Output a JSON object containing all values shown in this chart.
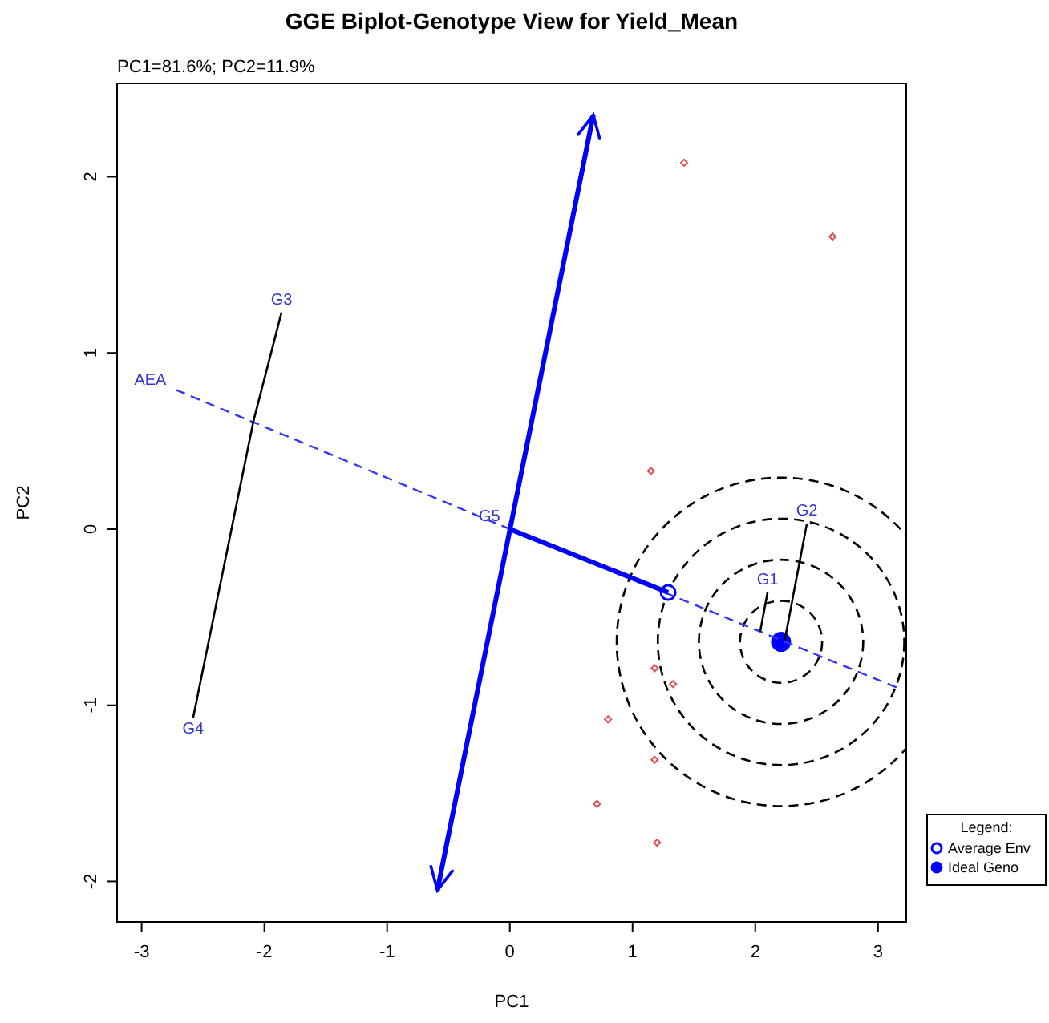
{
  "chart_data": {
    "type": "scatter",
    "title": "GGE Biplot-Genotype View for Yield_Mean",
    "subtitle": "PC1=81.6%; PC2=11.9%",
    "xlabel": "PC1",
    "ylabel": "PC2",
    "legend_title": "Legend:",
    "legend": "right",
    "grid": false,
    "xlim": [
      -3.2,
      3.23
    ],
    "ylim": [
      -2.23,
      2.53
    ],
    "xticks": [
      -3,
      -2,
      -1,
      0,
      1,
      2,
      3
    ],
    "yticks": [
      -2,
      -1,
      0,
      1,
      2
    ],
    "annotations": [
      {
        "text": "AEA",
        "x": -2.72,
        "y": 0.79
      },
      {
        "text": "G1",
        "x": 2.1,
        "y": -0.36
      },
      {
        "text": "G2",
        "x": 2.42,
        "y": 0.03
      },
      {
        "text": "G3",
        "x": -1.86,
        "y": 1.23
      },
      {
        "text": "G4",
        "x": -2.58,
        "y": -1.07
      },
      {
        "text": "G5",
        "x": 0,
        "y": 0
      }
    ],
    "series": [
      {
        "color": "#e05050",
        "marker": "diamond",
        "x": [
          1.42,
          2.63,
          1.15,
          1.18,
          1.33,
          0.8,
          1.18,
          0.71,
          1.2
        ],
        "values": [
          2.08,
          1.66,
          0.33,
          -0.79,
          -0.88,
          -1.08,
          -1.31,
          -1.56,
          -1.78
        ]
      },
      {
        "name": "Average Env",
        "color": "#0000ff",
        "marker": "circle",
        "x": [
          1.29
        ],
        "values": [
          -0.36
        ]
      },
      {
        "name": "Ideal Geno",
        "color": "#0000ff",
        "marker": "circle",
        "x": [
          2.21
        ],
        "values": [
          -0.64
        ]
      },
      {
        "type": "line",
        "color": "#3333ff",
        "line_style": "dashed",
        "x": [
          -2.72,
          0,
          3.19
        ],
        "values": [
          0.79,
          0,
          -0.91
        ]
      },
      {
        "type": "line",
        "color": "#0000ff",
        "line_style": "solid",
        "x": [
          -0.59,
          0.68
        ],
        "values": [
          -2.05,
          2.35
        ]
      },
      {
        "type": "line",
        "color": "#0000ff",
        "line_style": "solid",
        "x": [
          0,
          1.29
        ],
        "values": [
          0,
          -0.36
        ]
      },
      {
        "type": "line",
        "color": "#000000",
        "line_style": "solid",
        "x": [
          -1.86,
          -2.09,
          -2.58
        ],
        "values": [
          1.23,
          0.61,
          -1.07
        ]
      },
      {
        "type": "line",
        "color": "#000000",
        "line_style": "solid",
        "x": [
          2.1,
          2.04
        ],
        "values": [
          -0.36,
          -0.58
        ]
      },
      {
        "type": "line",
        "color": "#000000",
        "line_style": "solid",
        "x": [
          2.42,
          2.24
        ],
        "values": [
          0.03,
          -0.63
        ]
      }
    ]
  }
}
